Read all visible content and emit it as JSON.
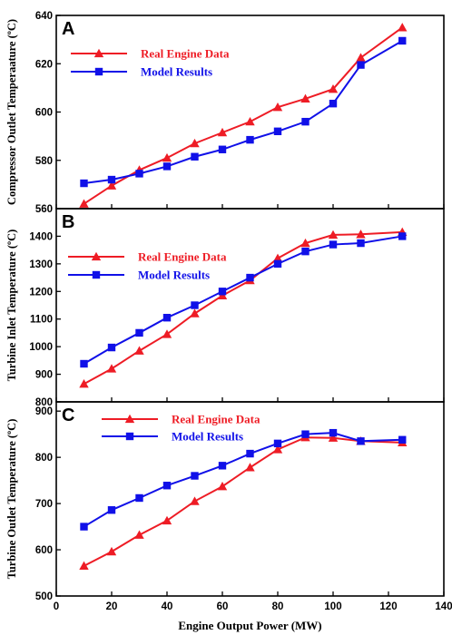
{
  "colors": {
    "real": "#ee1c25",
    "model": "#1010e8",
    "axis": "#000000"
  },
  "xaxis": {
    "label": "Engine Output Power (MW)",
    "range": [
      0,
      140
    ],
    "ticks": [
      0,
      20,
      40,
      60,
      80,
      100,
      120,
      140
    ]
  },
  "chart_data": [
    {
      "type": "line",
      "panel": "A",
      "ylabel": "Compressor Outlet Temperaature (ºC)",
      "ylim": [
        560,
        640
      ],
      "yticks": [
        560,
        580,
        600,
        620,
        640
      ],
      "x": [
        10,
        20,
        30,
        40,
        50,
        60,
        70,
        80,
        90,
        100,
        110,
        125
      ],
      "series": [
        {
          "name": "Real Engine Data",
          "marker": "triangle",
          "values": [
            562,
            569.5,
            576,
            581,
            587,
            591.5,
            596,
            602,
            605.5,
            609.5,
            622.5,
            635
          ]
        },
        {
          "name": "Model Results",
          "marker": "square",
          "values": [
            570.5,
            572,
            574.5,
            577.5,
            581.5,
            584.5,
            588.5,
            592,
            596,
            603.5,
            619.5,
            629.5
          ]
        }
      ],
      "legend": "top-left"
    },
    {
      "type": "line",
      "panel": "B",
      "ylabel": "Turbine Inlet Temperature (ºC)",
      "ylim": [
        800,
        1500
      ],
      "yticks": [
        800,
        900,
        1000,
        1100,
        1200,
        1300,
        1400
      ],
      "x": [
        10,
        20,
        30,
        40,
        50,
        60,
        70,
        80,
        90,
        100,
        110,
        125
      ],
      "series": [
        {
          "name": "Real Engine Data",
          "marker": "triangle",
          "values": [
            865,
            920,
            985,
            1045,
            1120,
            1185,
            1240,
            1320,
            1375,
            1405,
            1407,
            1415
          ]
        },
        {
          "name": "Model Results",
          "marker": "square",
          "values": [
            938,
            997,
            1050,
            1105,
            1150,
            1200,
            1250,
            1300,
            1345,
            1370,
            1375,
            1400
          ]
        }
      ],
      "legend": "top-left"
    },
    {
      "type": "line",
      "panel": "C",
      "ylabel": "Turbine Outlet Temperature (ºC)",
      "ylim": [
        500,
        920
      ],
      "yticks": [
        500,
        600,
        700,
        800,
        900
      ],
      "x": [
        10,
        20,
        30,
        40,
        50,
        60,
        70,
        80,
        90,
        100,
        110,
        125
      ],
      "series": [
        {
          "name": "Real Engine Data",
          "marker": "triangle",
          "values": [
            565,
            596,
            632,
            663,
            705,
            737,
            778,
            817,
            843,
            842,
            835,
            832
          ]
        },
        {
          "name": "Model Results",
          "marker": "square",
          "values": [
            650,
            686,
            712,
            739,
            760,
            782,
            808,
            830,
            850,
            853,
            835,
            838
          ]
        }
      ],
      "legend": "top-center"
    }
  ]
}
